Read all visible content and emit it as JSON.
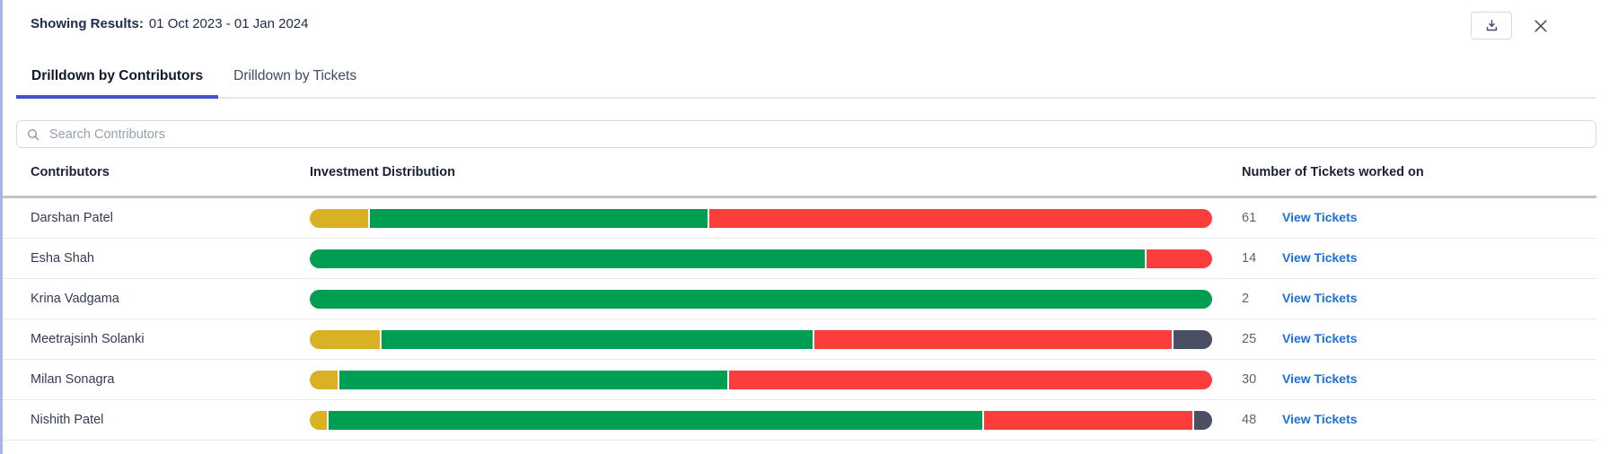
{
  "panel": {
    "showing_results_label": "Showing Results:",
    "date_range": "01 Oct 2023 - 01 Jan 2024"
  },
  "tabs": {
    "contributors": "Drilldown by Contributors",
    "tickets": "Drilldown by Tickets"
  },
  "search": {
    "placeholder": "Search Contributors",
    "value": ""
  },
  "table": {
    "columns": {
      "contributors": "Contributors",
      "distribution": "Investment Distribution",
      "tickets": "Number of Tickets worked on"
    },
    "view_tickets_label": "View Tickets",
    "rows": [
      {
        "contributor": "Darshan Patel",
        "tickets": "61",
        "segments": [
          {
            "color": "yellow",
            "pct": 6.5
          },
          {
            "color": "green",
            "pct": 37.6
          },
          {
            "color": "red",
            "pct": 55.9
          }
        ]
      },
      {
        "contributor": "Esha Shah",
        "tickets": "14",
        "segments": [
          {
            "color": "green",
            "pct": 92.7
          },
          {
            "color": "red",
            "pct": 7.3
          }
        ]
      },
      {
        "contributor": "Krina Vadgama",
        "tickets": "2",
        "segments": [
          {
            "color": "green",
            "pct": 100
          }
        ]
      },
      {
        "contributor": "Meetrajsinh Solanki",
        "tickets": "25",
        "segments": [
          {
            "color": "yellow",
            "pct": 7.8
          },
          {
            "color": "green",
            "pct": 48.1
          },
          {
            "color": "red",
            "pct": 39.8
          },
          {
            "color": "dark",
            "pct": 4.3
          }
        ]
      },
      {
        "contributor": "Milan Sonagra",
        "tickets": "30",
        "segments": [
          {
            "color": "yellow",
            "pct": 3.1
          },
          {
            "color": "green",
            "pct": 43.2
          },
          {
            "color": "red",
            "pct": 53.7
          }
        ]
      },
      {
        "contributor": "Nishith Patel",
        "tickets": "48",
        "segments": [
          {
            "color": "yellow",
            "pct": 1.9
          },
          {
            "color": "green",
            "pct": 72.9
          },
          {
            "color": "red",
            "pct": 23.2
          },
          {
            "color": "dark",
            "pct": 2.0
          }
        ]
      }
    ]
  },
  "icons": {
    "download": "download-icon",
    "close": "close-icon",
    "search": "search-icon"
  },
  "theme": {
    "segment_colors": {
      "yellow": "#D8B125",
      "green": "#009E53",
      "red": "#FB3D3C",
      "dark": "#4A4F63"
    },
    "tab_underline": "#4353CE",
    "link_blue": "#1B6FDE",
    "accent_stripe": "#A9B5E8"
  }
}
